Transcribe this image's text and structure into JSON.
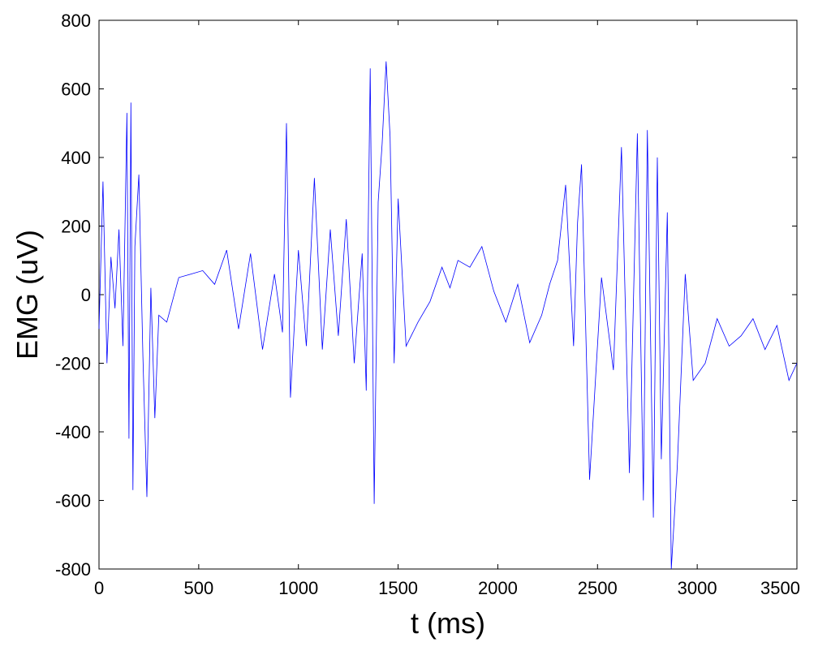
{
  "chart_data": {
    "type": "line",
    "title": "",
    "xlabel": "t (ms)",
    "ylabel": "EMG (uV)",
    "xlim": [
      0,
      3500
    ],
    "ylim": [
      -800,
      800
    ],
    "xticks": [
      "0",
      "500",
      "1000",
      "1500",
      "2000",
      "2500",
      "3000",
      "3500"
    ],
    "yticks": [
      "800",
      "600",
      "400",
      "200",
      "0",
      "-200",
      "-400",
      "-600",
      "-800"
    ],
    "grid": false,
    "line_color": "#0000ff",
    "series": [
      {
        "name": "",
        "x": [
          0,
          20,
          40,
          60,
          80,
          100,
          120,
          140,
          150,
          160,
          170,
          180,
          200,
          220,
          240,
          260,
          280,
          300,
          340,
          400,
          460,
          520,
          580,
          640,
          700,
          760,
          820,
          880,
          920,
          940,
          960,
          1000,
          1040,
          1080,
          1120,
          1160,
          1200,
          1240,
          1280,
          1320,
          1340,
          1360,
          1380,
          1400,
          1420,
          1440,
          1460,
          1480,
          1500,
          1540,
          1600,
          1660,
          1720,
          1760,
          1800,
          1860,
          1920,
          1980,
          2040,
          2100,
          2160,
          2220,
          2260,
          2300,
          2340,
          2380,
          2400,
          2420,
          2460,
          2520,
          2580,
          2620,
          2660,
          2700,
          2730,
          2750,
          2780,
          2800,
          2820,
          2850,
          2870,
          2900,
          2940,
          2980,
          3040,
          3100,
          3160,
          3220,
          3280,
          3340,
          3400,
          3460,
          3500
        ],
        "y": [
          -100,
          330,
          -200,
          110,
          -40,
          190,
          -150,
          530,
          -420,
          560,
          -570,
          140,
          350,
          -180,
          -590,
          20,
          -360,
          -60,
          -80,
          50,
          60,
          70,
          30,
          130,
          -100,
          120,
          -160,
          60,
          -110,
          500,
          -300,
          130,
          -150,
          340,
          -160,
          190,
          -120,
          220,
          -200,
          120,
          -280,
          660,
          -610,
          270,
          440,
          680,
          460,
          -200,
          280,
          -150,
          -80,
          -20,
          80,
          20,
          100,
          80,
          140,
          10,
          -80,
          30,
          -140,
          -60,
          30,
          100,
          320,
          -150,
          210,
          380,
          -540,
          50,
          -220,
          430,
          -520,
          470,
          -600,
          480,
          -650,
          400,
          -480,
          240,
          -800,
          -500,
          60,
          -250,
          -200,
          -70,
          -150,
          -120,
          -70,
          -160,
          -90,
          -250,
          -200
        ]
      }
    ]
  }
}
